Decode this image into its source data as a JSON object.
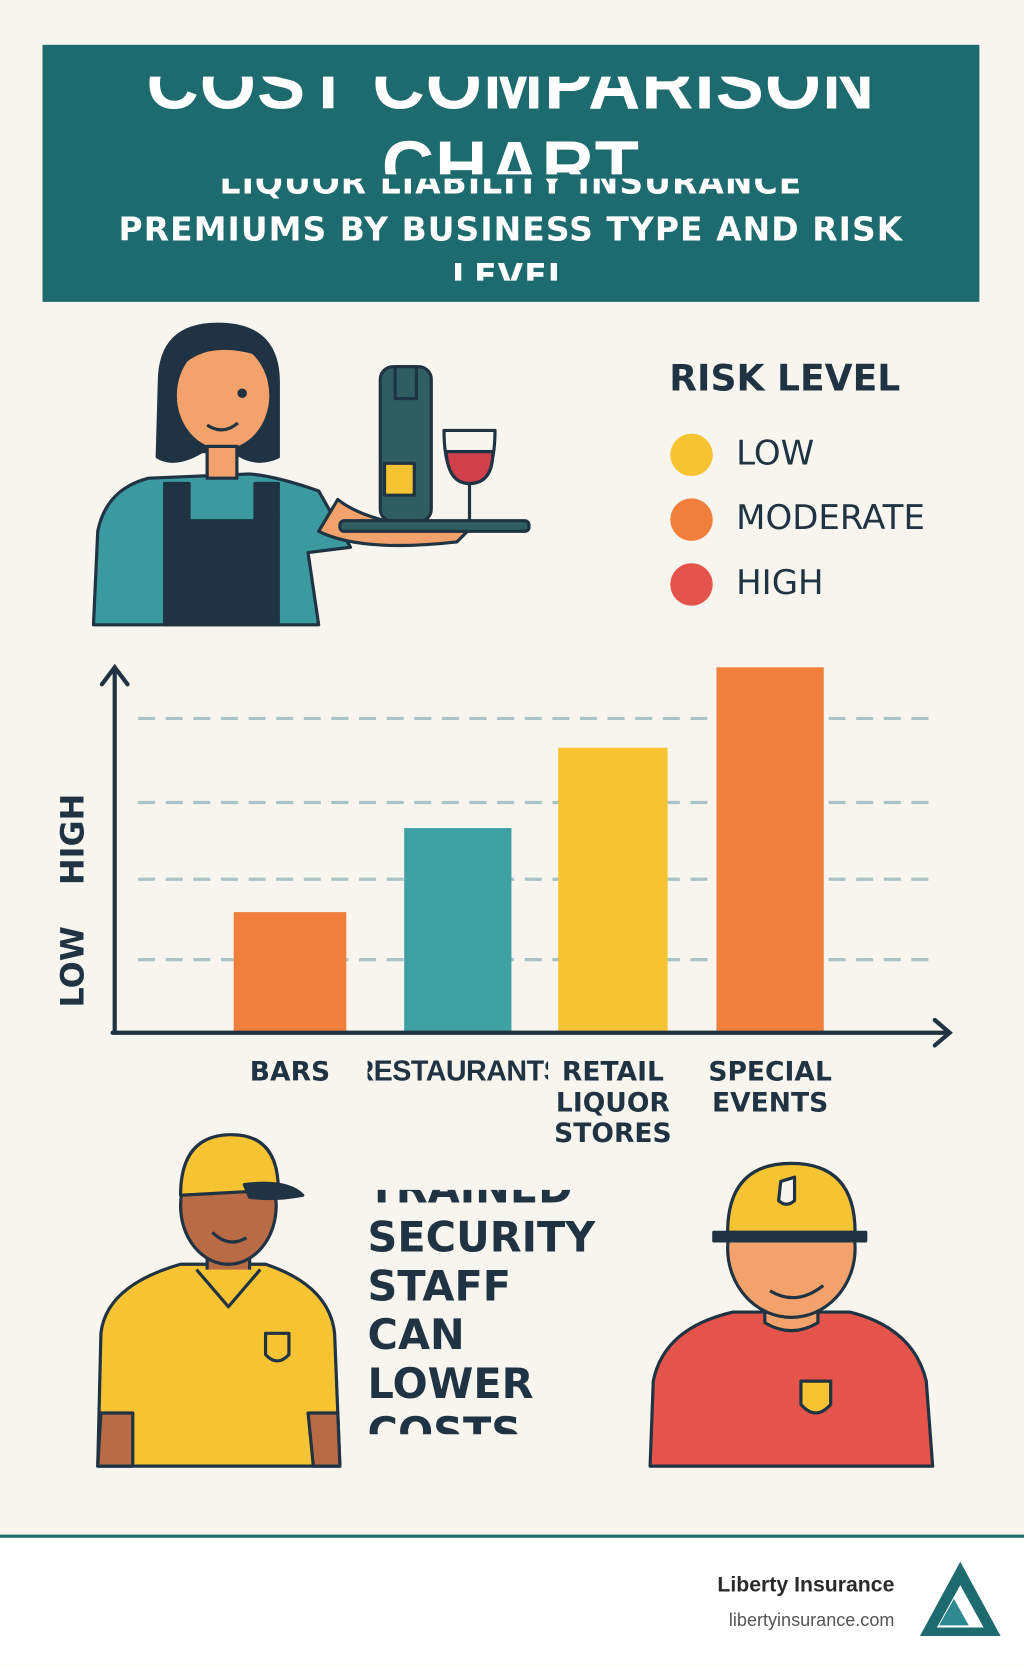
{
  "header": {
    "title": "COST COMPARISON CHART",
    "subtitle": "LIQUOR LIABILITY INSURANCE PREMIUMS BY BUSINESS TYPE AND RISK LEVEL"
  },
  "legend": {
    "title": "RISK LEVEL",
    "items": [
      {
        "label": "LOW",
        "color": "#f6c333"
      },
      {
        "label": "MODERATE",
        "color": "#f07f3c"
      },
      {
        "label": "HIGH",
        "color": "#e5544a"
      }
    ]
  },
  "chart_data": {
    "type": "bar",
    "categories": [
      "BARS",
      "RESTAURANTS",
      "RETAIL LIQUOR STORES",
      "SPECIAL EVENTS"
    ],
    "values": [
      33,
      56,
      78,
      100
    ],
    "colors": [
      "#f07f3c",
      "#3fa0a3",
      "#f6c333",
      "#f07f3c"
    ],
    "ylim": [
      0,
      100
    ],
    "gridlines": [
      20,
      42,
      63,
      86
    ],
    "ylabel_low": "LOW",
    "ylabel_high": "HIGH"
  },
  "callout": "TRAINED SECURITY STAFF CAN LOWER COSTS",
  "footer": {
    "brand": "Liberty Insurance",
    "url": "libertyinsurance.com"
  }
}
